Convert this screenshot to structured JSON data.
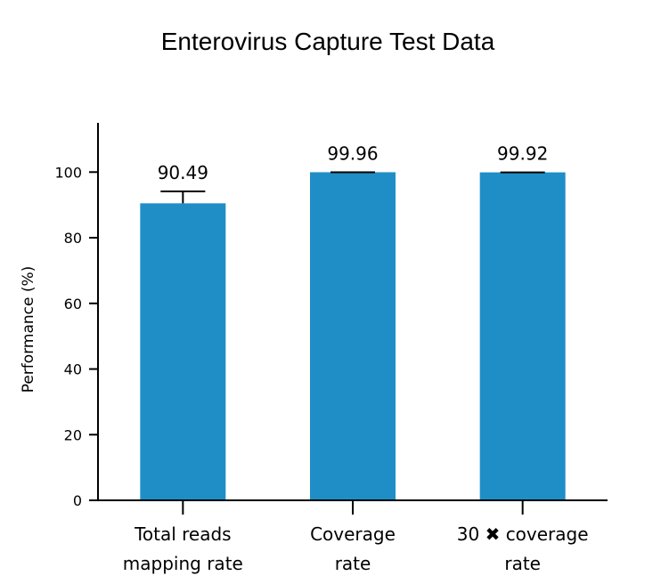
{
  "chart_data": {
    "type": "bar",
    "title": "Enterovirus Capture Test Data",
    "xlabel": "",
    "ylabel": "Performance (%)",
    "ylim": [
      0,
      115
    ],
    "yticks": [
      0,
      20,
      40,
      60,
      80,
      100
    ],
    "categories": [
      [
        "Total reads",
        "mapping rate"
      ],
      [
        "Coverage",
        "rate"
      ],
      [
        "30 ✖ coverage",
        "rate"
      ]
    ],
    "values": [
      90.49,
      99.96,
      99.92
    ],
    "data_labels": [
      "90.49",
      "99.96",
      "99.92"
    ],
    "error_upper": [
      94.1,
      99.96,
      99.92
    ],
    "grid": false,
    "bar_color": "#1f8ec7"
  }
}
